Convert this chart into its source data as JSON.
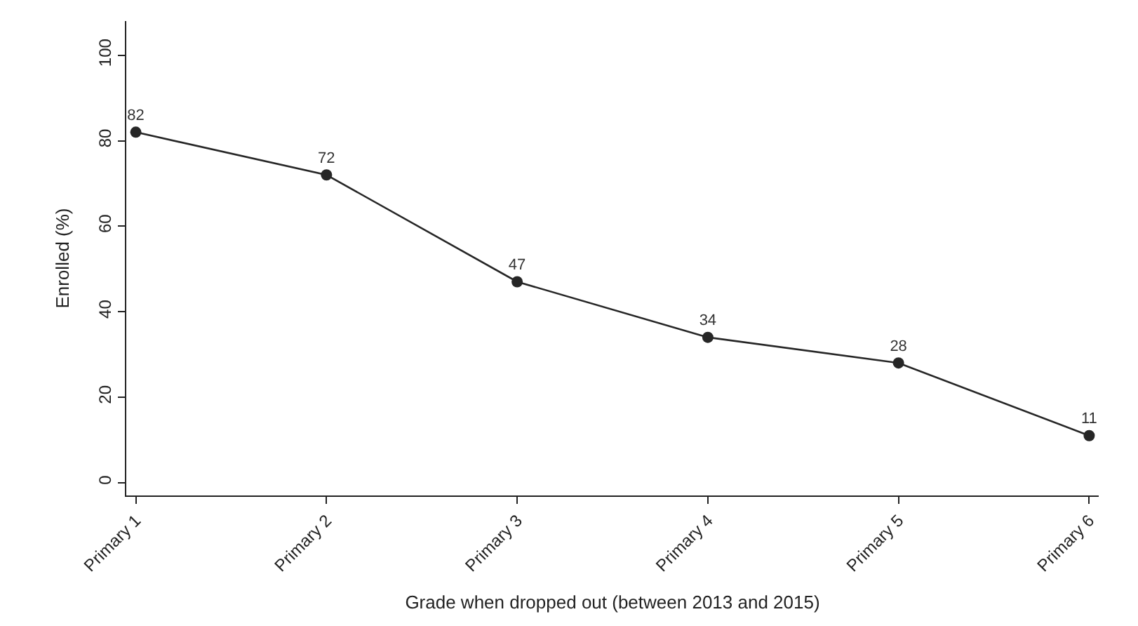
{
  "chart_data": {
    "type": "line",
    "xlabel": "Grade when dropped out (between 2013 and 2015)",
    "ylabel": "Enrolled (%)",
    "categories": [
      "Primary 1",
      "Primary 2",
      "Primary 3",
      "Primary 4",
      "Primary 5",
      "Primary 6"
    ],
    "series": [
      {
        "color": "#262626",
        "values": [
          82,
          72,
          47,
          34,
          28,
          11
        ]
      }
    ],
    "ylim": [
      -3,
      108
    ],
    "yticks": [
      0,
      20,
      40,
      60,
      80,
      100
    ],
    "legend": false,
    "marker": "circle",
    "line_style": "solid",
    "data_labels": true
  }
}
